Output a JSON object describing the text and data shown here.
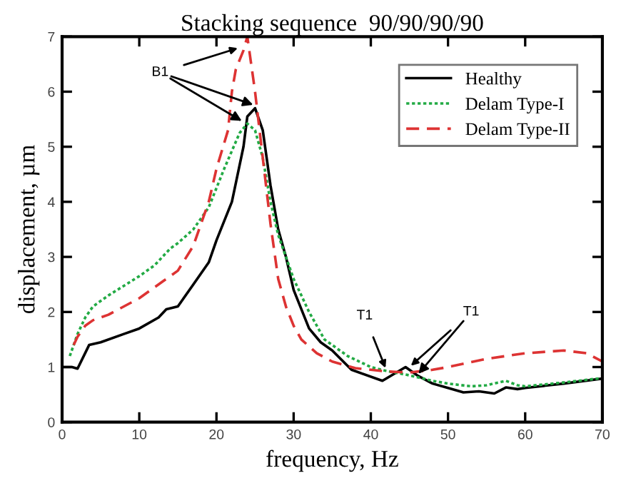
{
  "chart_data": {
    "type": "line",
    "title": "Stacking sequence  90/90/90/90",
    "xlabel": "frequency, Hz",
    "ylabel": "displacement, µm",
    "xlim": [
      0,
      70
    ],
    "xticks": [
      0,
      10,
      20,
      30,
      40,
      50,
      60,
      70
    ],
    "ylim": [
      0,
      7
    ],
    "yticks": [
      0,
      1,
      2,
      3,
      4,
      5,
      6,
      7
    ],
    "grid": false,
    "legend": "top right",
    "marker": "none",
    "series": [
      {
        "name": "Healthy",
        "color": "#000000",
        "line_style": "solid",
        "x": [
          0,
          1.3,
          2,
          3.5,
          5,
          8,
          10,
          12.5,
          13.5,
          15,
          17,
          19,
          20,
          22,
          23.5,
          24,
          25,
          26,
          27,
          28,
          29,
          30,
          32,
          33.5,
          35,
          37.5,
          41.5,
          44.5,
          46,
          48,
          50,
          52,
          54,
          56,
          57.5,
          59,
          60,
          65,
          70
        ],
        "values": [
          1.0,
          1.0,
          0.97,
          1.4,
          1.45,
          1.6,
          1.7,
          1.9,
          2.05,
          2.1,
          2.5,
          2.9,
          3.3,
          4.0,
          5.0,
          5.55,
          5.7,
          5.3,
          4.3,
          3.5,
          3.0,
          2.4,
          1.7,
          1.45,
          1.3,
          0.95,
          0.75,
          1.0,
          0.85,
          0.7,
          0.62,
          0.54,
          0.56,
          0.52,
          0.63,
          0.6,
          0.62,
          0.7,
          0.79
        ]
      },
      {
        "name": "Delam Type-I",
        "color": "#22aa44",
        "line_style": "dotted",
        "x": [
          1,
          2,
          3,
          4,
          6,
          10,
          12,
          14,
          15,
          17,
          19,
          21,
          23,
          24,
          25,
          26,
          27,
          28,
          30,
          32,
          34,
          37,
          40,
          42,
          45,
          48,
          50,
          53,
          55,
          57.5,
          59,
          60,
          65,
          70
        ],
        "values": [
          1.2,
          1.6,
          1.9,
          2.1,
          2.3,
          2.65,
          2.85,
          3.15,
          3.25,
          3.5,
          3.9,
          4.6,
          5.25,
          5.42,
          5.3,
          4.8,
          4.0,
          3.4,
          2.6,
          2.0,
          1.5,
          1.2,
          1.0,
          0.93,
          0.85,
          0.75,
          0.7,
          0.65,
          0.67,
          0.75,
          0.67,
          0.65,
          0.72,
          0.8
        ]
      },
      {
        "name": "Delam Type-II",
        "color": "#dd3333",
        "line_style": "dashed",
        "x": [
          1.5,
          2,
          3,
          4,
          6,
          10,
          13,
          15,
          17,
          19,
          20,
          21.5,
          22,
          22.5,
          23.5,
          24,
          25,
          26,
          27,
          28,
          29,
          30,
          31,
          33,
          35,
          38,
          42,
          45,
          48,
          50,
          55,
          60,
          65,
          68,
          70
        ],
        "values": [
          1.4,
          1.55,
          1.75,
          1.85,
          1.95,
          2.25,
          2.55,
          2.75,
          3.2,
          4.0,
          4.6,
          5.3,
          6.0,
          6.4,
          6.75,
          7.0,
          6.0,
          4.8,
          3.6,
          2.6,
          2.1,
          1.75,
          1.5,
          1.25,
          1.1,
          0.98,
          0.92,
          0.9,
          0.95,
          1.0,
          1.15,
          1.25,
          1.3,
          1.25,
          1.1
        ]
      }
    ],
    "annotations": [
      {
        "text": "B1",
        "x": 23,
        "y": 6.8
      },
      {
        "text": "T1",
        "x": 42,
        "y": 0.95
      },
      {
        "text": "T1",
        "x": 45,
        "y": 1.0
      }
    ]
  }
}
